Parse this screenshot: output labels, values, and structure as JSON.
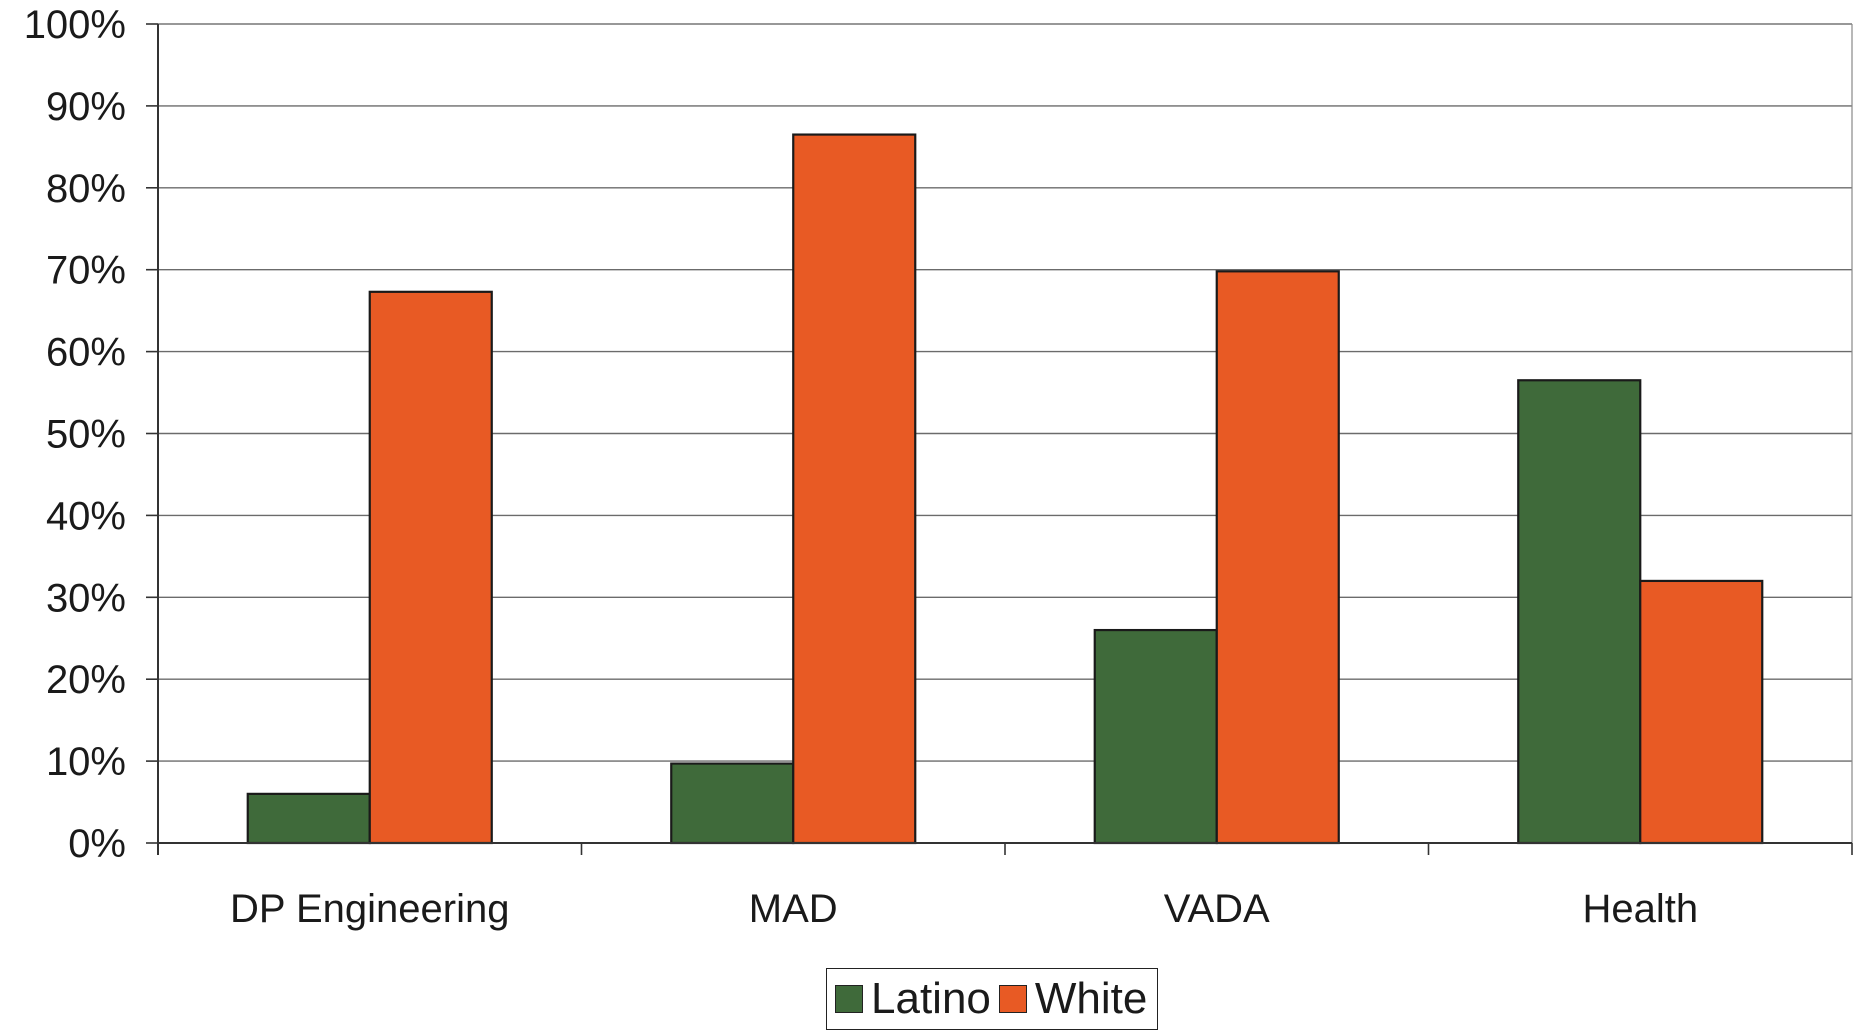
{
  "chart_data": {
    "type": "bar",
    "categories": [
      "DP Engineering",
      "MAD",
      "VADA",
      "Health"
    ],
    "series": [
      {
        "name": "Latino",
        "values": [
          6,
          9.7,
          26,
          56.5
        ],
        "color": "#3f6a3a"
      },
      {
        "name": "White",
        "values": [
          67.3,
          86.5,
          69.8,
          32
        ],
        "color": "#e85a24"
      }
    ],
    "ylim": [
      0,
      100
    ],
    "yticks": [
      "0%",
      "10%",
      "20%",
      "30%",
      "40%",
      "50%",
      "60%",
      "70%",
      "80%",
      "90%",
      "100%"
    ],
    "grid": true,
    "legend_position": "bottom-center",
    "title": "",
    "xlabel": "",
    "ylabel": ""
  }
}
